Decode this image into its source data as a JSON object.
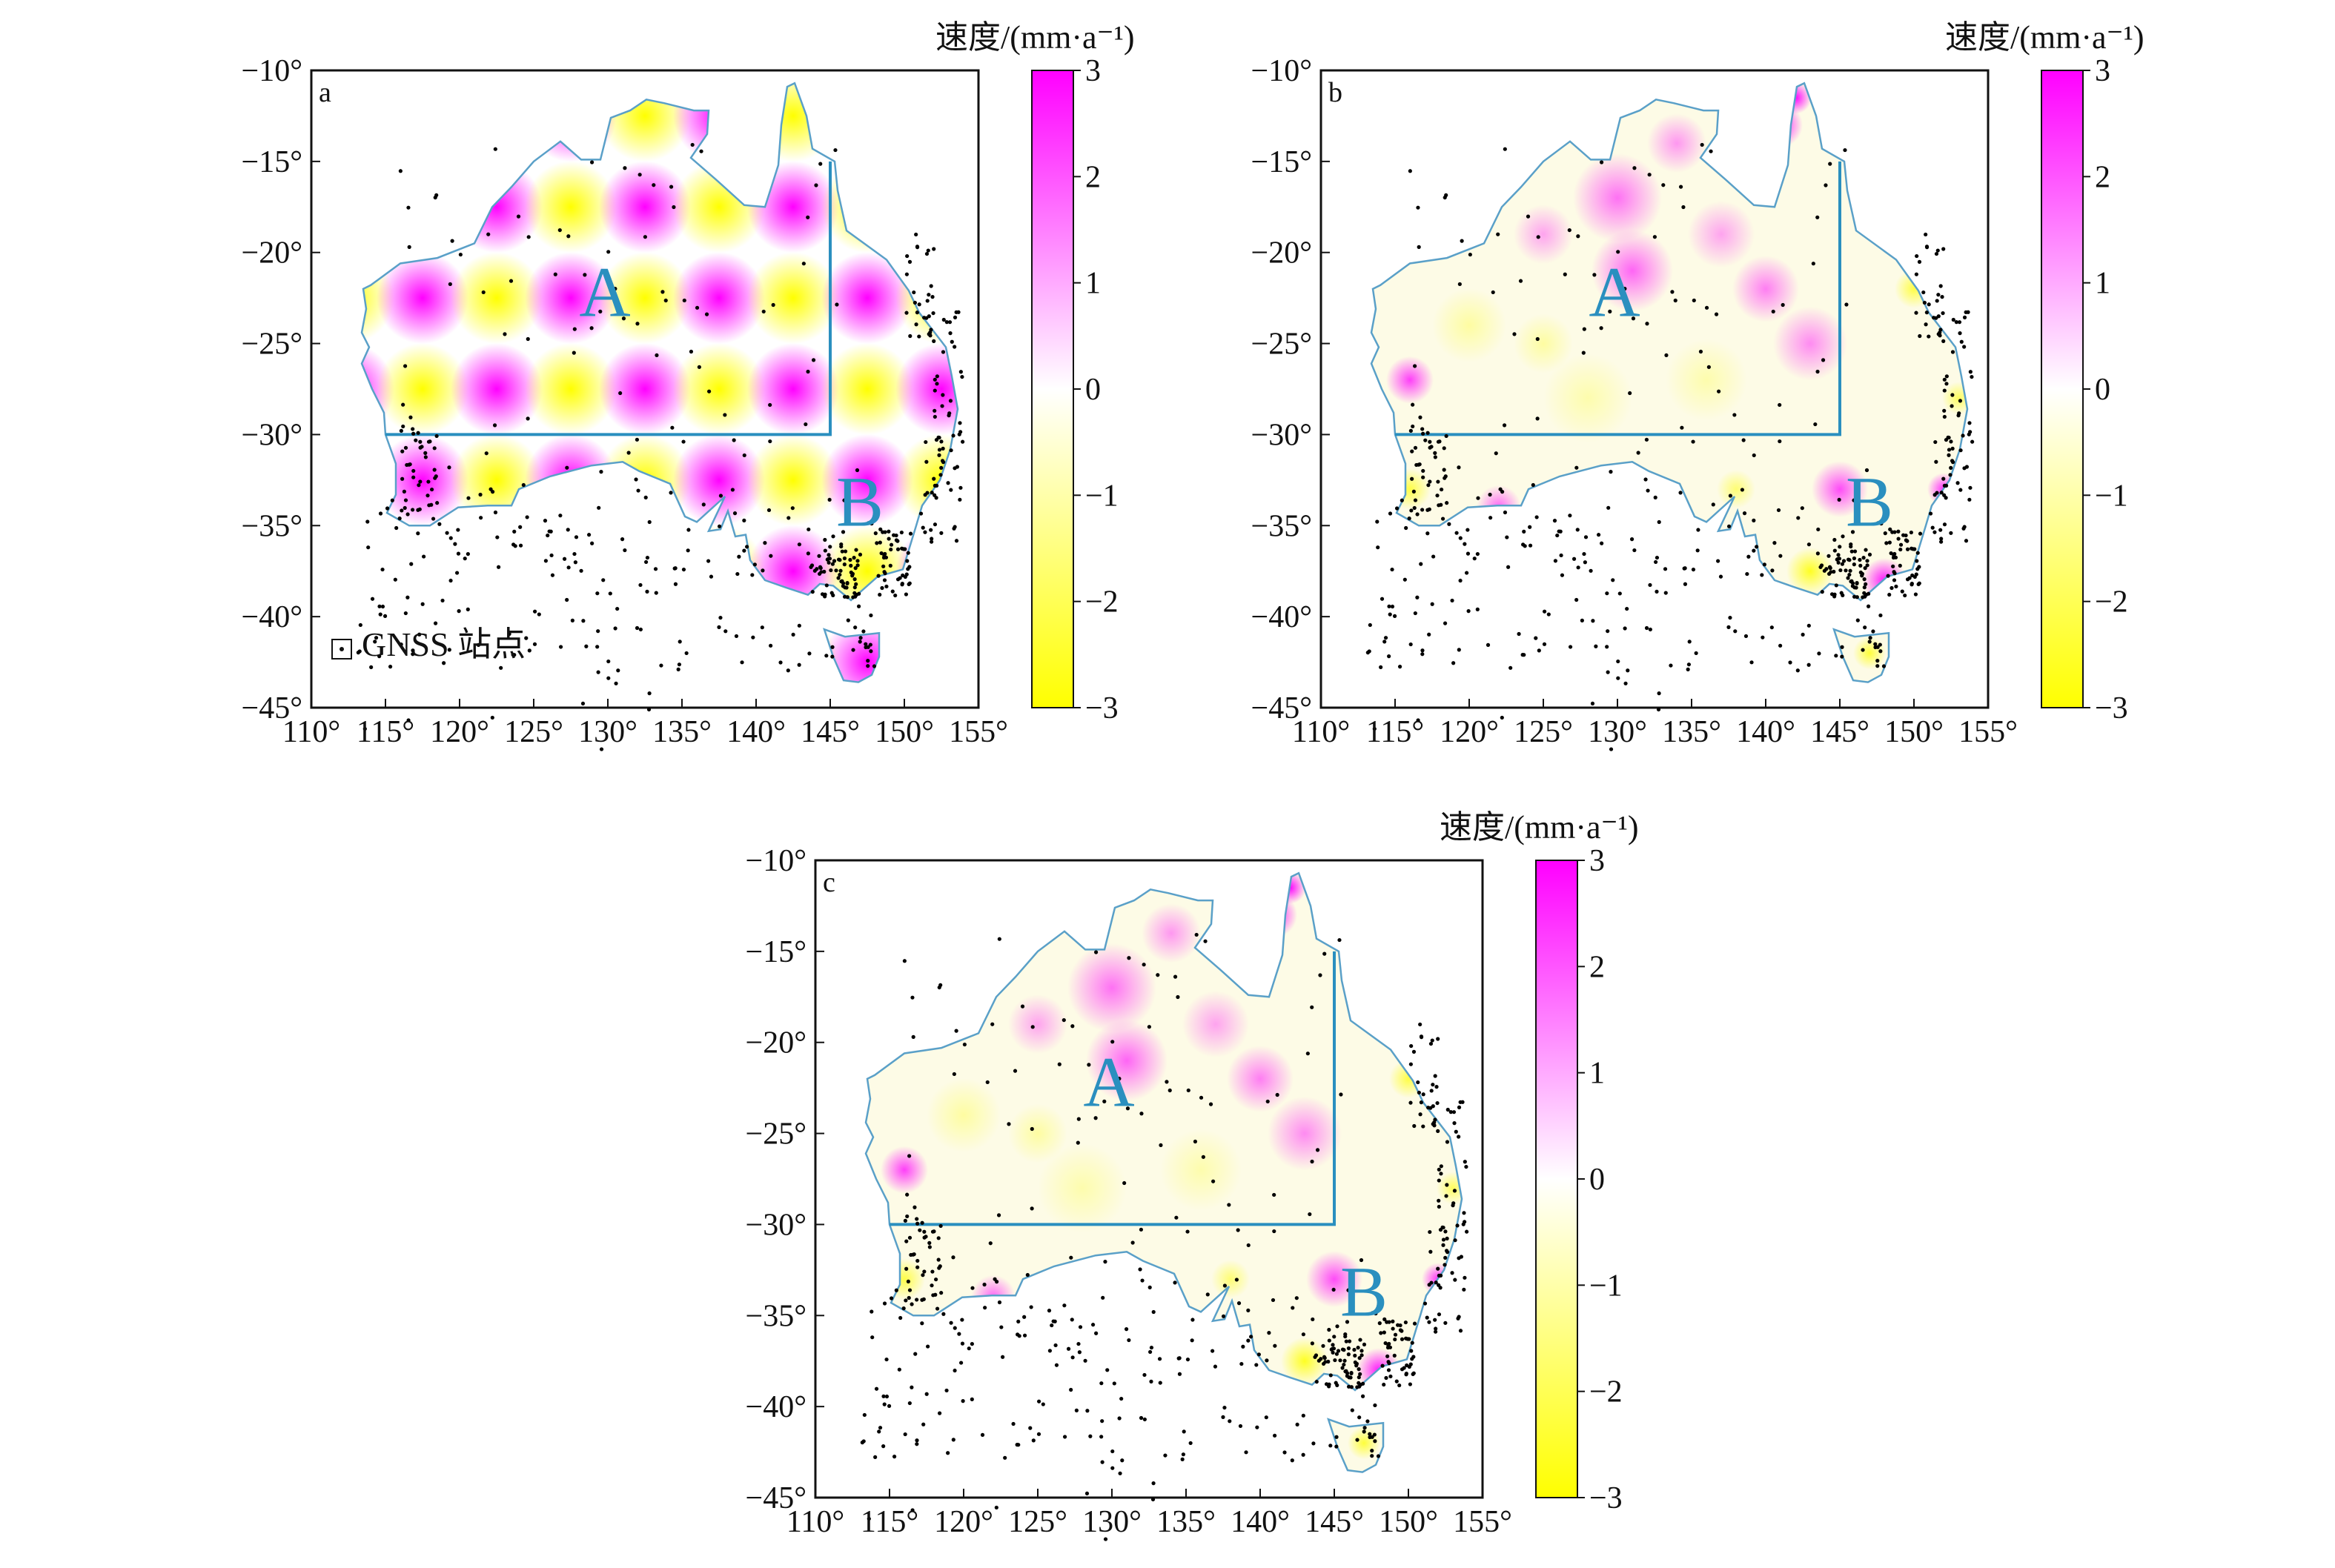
{
  "colorbar": {
    "title": "速度/(mm·a⁻¹)",
    "ticks": [
      "3",
      "2",
      "1",
      "0",
      "−1",
      "−2",
      "−3"
    ],
    "colors": {
      "max": "#ff00ff",
      "mid": "#ffffff",
      "min": "#ffff00"
    }
  },
  "axes": {
    "lat_ticks": [
      "−10°",
      "−15°",
      "−20°",
      "−25°",
      "−30°",
      "−35°",
      "−40°",
      "−45°"
    ],
    "lon_ticks": [
      "110°",
      "115°",
      "120°",
      "125°",
      "130°",
      "135°",
      "140°",
      "145°",
      "150°",
      "155°"
    ]
  },
  "legend": {
    "station_label": "GNSS 站点"
  },
  "regions": {
    "a": "A",
    "b": "B"
  },
  "panels": [
    {
      "id": "a",
      "label": "a"
    },
    {
      "id": "b",
      "label": "b"
    },
    {
      "id": "c",
      "label": "c"
    }
  ],
  "colors": {
    "coast": "#5aa0c8",
    "box": "#2a8fbf",
    "station": "#000000"
  },
  "chart_data": {
    "type": "heatmap",
    "lon_range": [
      110,
      155
    ],
    "lat_range": [
      -45,
      -10
    ],
    "value_range": [
      -3,
      3
    ],
    "region_A_box": {
      "lon": [
        115,
        145
      ],
      "lat": [
        -30,
        -15
      ]
    }
  }
}
